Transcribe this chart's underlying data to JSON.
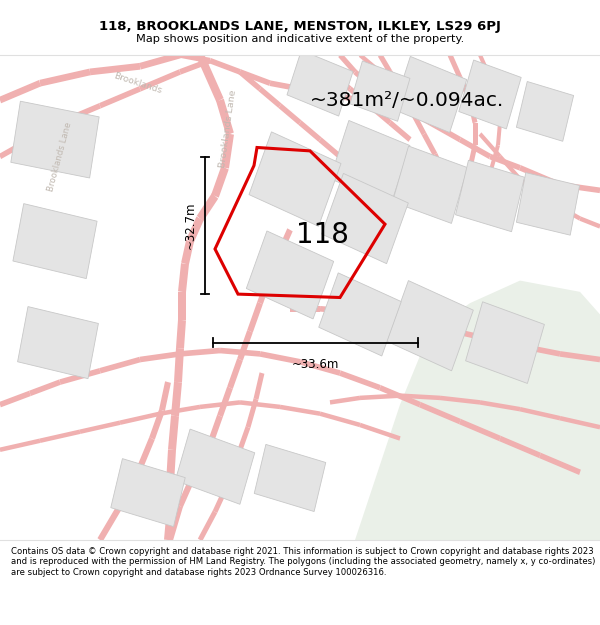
{
  "title_line1": "118, BROOKLANDS LANE, MENSTON, ILKLEY, LS29 6PJ",
  "title_line2": "Map shows position and indicative extent of the property.",
  "area_text": "~381m²/~0.094ac.",
  "label_118": "118",
  "dim_vertical": "~32.7m",
  "dim_horizontal": "~33.6m",
  "footer_text": "Contains OS data © Crown copyright and database right 2021. This information is subject to Crown copyright and database rights 2023 and is reproduced with the permission of HM Land Registry. The polygons (including the associated geometry, namely x, y co-ordinates) are subject to Crown copyright and database rights 2023 Ordnance Survey 100026316.",
  "bg_map_color": "#f7f7f5",
  "bg_green_color": "#eaf0e8",
  "road_color": "#f0b0b0",
  "plot_outline_color": "#dd0000",
  "building_fill": "#e4e4e4",
  "building_stroke": "#c8c8c8",
  "header_bg": "#ffffff",
  "footer_bg": "#ffffff",
  "road_label_color": "#c0b8b0",
  "separator_color": "#e0e0e0"
}
